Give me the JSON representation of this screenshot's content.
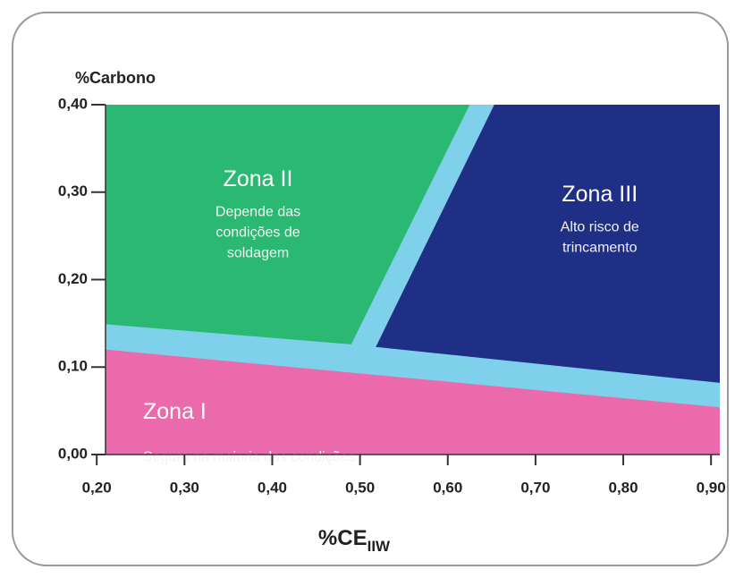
{
  "chart_data": {
    "type": "zones",
    "y_label": "%Carbono",
    "x_label": "%CE",
    "x_label_sub": "IIW",
    "xlim": [
      0.21,
      0.91
    ],
    "ylim": [
      0,
      0.4
    ],
    "xticks": [
      {
        "value": 0.2,
        "label": "0,20"
      },
      {
        "value": 0.3,
        "label": "0,30"
      },
      {
        "value": 0.4,
        "label": "0,40"
      },
      {
        "value": 0.5,
        "label": "0,50"
      },
      {
        "value": 0.6,
        "label": "0,60"
      },
      {
        "value": 0.7,
        "label": "0,70"
      },
      {
        "value": 0.8,
        "label": "0,80"
      },
      {
        "value": 0.9,
        "label": "0,90"
      }
    ],
    "yticks": [
      {
        "value": 0,
        "label": "0,00"
      },
      {
        "value": 0.1,
        "label": "0,10"
      },
      {
        "value": 0.2,
        "label": "0,20"
      },
      {
        "value": 0.3,
        "label": "0,30"
      },
      {
        "value": 0.4,
        "label": "0,40"
      }
    ],
    "background_color": "#7fd0ea",
    "zones": [
      {
        "name": "Zona II",
        "lines": [
          "Depende das",
          "condições de",
          "soldagem"
        ],
        "color": "#2bb872",
        "x": [
          0.21,
          0.625,
          0.49,
          0.21
        ],
        "y": [
          0.4,
          0.4,
          0.126,
          0.149
        ]
      },
      {
        "name": "Zona III",
        "lines": [
          "Alto risco de",
          "trincamento"
        ],
        "color": "#1f2f86",
        "x": [
          0.653,
          0.91,
          0.91,
          0.518
        ],
        "y": [
          0.4,
          0.4,
          0.082,
          0.123
        ]
      },
      {
        "name": "Zona I",
        "lines": [
          "Seguro na maioria das condições"
        ],
        "color": "#ea6aab",
        "x": [
          0.21,
          0.91,
          0.91,
          0.21
        ],
        "y": [
          0,
          0,
          0.054,
          0.12
        ]
      }
    ]
  }
}
